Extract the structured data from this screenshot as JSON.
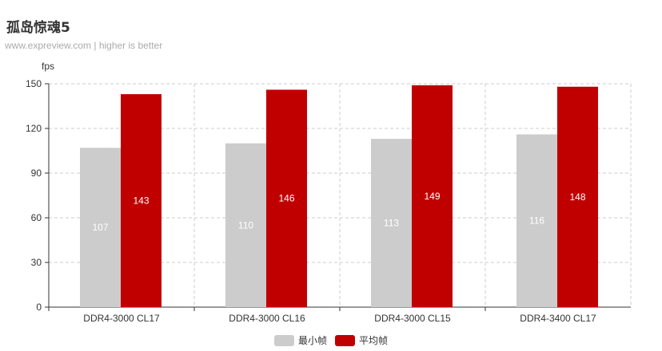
{
  "chart_data": {
    "type": "bar",
    "title": "孤岛惊魂5",
    "subtitle": "www.expreview.com | higher is better",
    "ylabel": "fps",
    "xlabel": "",
    "ylim": [
      0,
      150
    ],
    "yticks": [
      0,
      30,
      60,
      90,
      120,
      150
    ],
    "categories": [
      "DDR4-3000 CL17",
      "DDR4-3000 CL16",
      "DDR4-3000 CL15",
      "DDR4-3400 CL17"
    ],
    "series": [
      {
        "name": "最小帧",
        "values": [
          107,
          110,
          113,
          116
        ],
        "color": "#cccccc"
      },
      {
        "name": "平均帧",
        "values": [
          143,
          146,
          149,
          148
        ],
        "color": "#c00000"
      }
    ],
    "grid": true,
    "legend_position": "bottom-center"
  }
}
